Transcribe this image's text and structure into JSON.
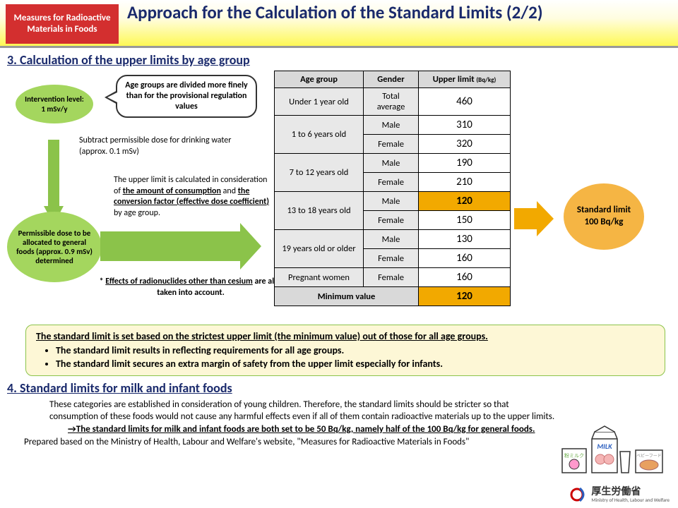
{
  "header": {
    "badge": "Measures for Radioactive Materials in Foods",
    "title": "Approach for the Calculation of the Standard Limits (2/2)"
  },
  "section3": {
    "heading": "3. Calculation of the upper limits by age group",
    "ellipse1": "Intervention level: 1 mSv/y",
    "ellipse2": "Permissible dose to be allocated to general foods (approx. 0.9 mSv) determined",
    "speech": "Age groups are divided more finely than for the provisional regulation values",
    "note1": "Subtract permissible dose for drinking water (approx. 0.1 mSv)",
    "note2_pre": "The upper limit is calculated in consideration of ",
    "note2_u1": "the amount of consumption",
    "note2_mid": " and ",
    "note2_u2": "the conversion factor (effective dose coefficient)",
    "note2_post": " by age group.",
    "note3_pre": "* ",
    "note3_u": "Effects of radionuclides other than cesium",
    "note3_post": " are also taken into account.",
    "table": {
      "headers": [
        "Age group",
        "Gender",
        "Upper limit"
      ],
      "unit": "(Bq/kg)",
      "rows": [
        {
          "age": "Under 1 year old",
          "gender": "Total average",
          "limit": "460",
          "rowspan": 1,
          "hl": false
        },
        {
          "age": "1 to 6 years old",
          "gender": "Male",
          "limit": "310",
          "rowspan": 2,
          "hl": false
        },
        {
          "gender": "Female",
          "limit": "320",
          "hl": false
        },
        {
          "age": "7 to 12 years old",
          "gender": "Male",
          "limit": "190",
          "rowspan": 2,
          "hl": false
        },
        {
          "gender": "Female",
          "limit": "210",
          "hl": false
        },
        {
          "age": "13 to 18 years old",
          "gender": "Male",
          "limit": "120",
          "rowspan": 2,
          "hl": true
        },
        {
          "gender": "Female",
          "limit": "150",
          "hl": false
        },
        {
          "age": "19 years old or older",
          "gender": "Male",
          "limit": "130",
          "rowspan": 2,
          "hl": false
        },
        {
          "gender": "Female",
          "limit": "160",
          "hl": false
        },
        {
          "age": "Pregnant women",
          "gender": "Female",
          "limit": "160",
          "rowspan": 1,
          "hl": false
        }
      ],
      "min_label": "Minimum value",
      "min_value": "120"
    },
    "circle_label": "Standard limit",
    "circle_value": "100 Bq/kg"
  },
  "yellowbox": {
    "lead": "The standard limit is set based on the strictest upper limit (the minimum value) out of those for all age groups.",
    "b1": "The standard limit results in reflecting requirements for all age groups.",
    "b2": "The standard limit secures an extra margin of safety from the upper limit especially for infants."
  },
  "section4": {
    "heading": "4. Standard limits for milk and infant foods",
    "p1": "These categories are established in consideration of young children. Therefore, the standard limits should be stricter so that consumption of these foods would not cause any harmful effects even if all of them contain radioactive materials up to the upper limits.",
    "arrow_pre": "→",
    "arrow_u": "The standard limits for milk and infant foods are both set to be 50 Bq/kg",
    "arrow_post": ", namely half of the 100 Bq/kg for general foods."
  },
  "footer": {
    "source": "Prepared based on the Ministry of Health, Labour and Welfare's website, \"Measures for Radioactive Materials in Foods\"",
    "logo_text": "厚生労働省",
    "logo_sub": "Ministry of Health, Labour and Welfare"
  },
  "colors": {
    "red": "#d32f2f",
    "green": "#a4d65e",
    "green_arrow": "#8bc34a",
    "orange": "#f2a900",
    "orange_light": "#f5b544",
    "yellow_bg": "#fdf7d6",
    "gray_header": "#d9d9d9",
    "gray_cell": "#e8e8e8",
    "navy": "#1a2a6c"
  }
}
